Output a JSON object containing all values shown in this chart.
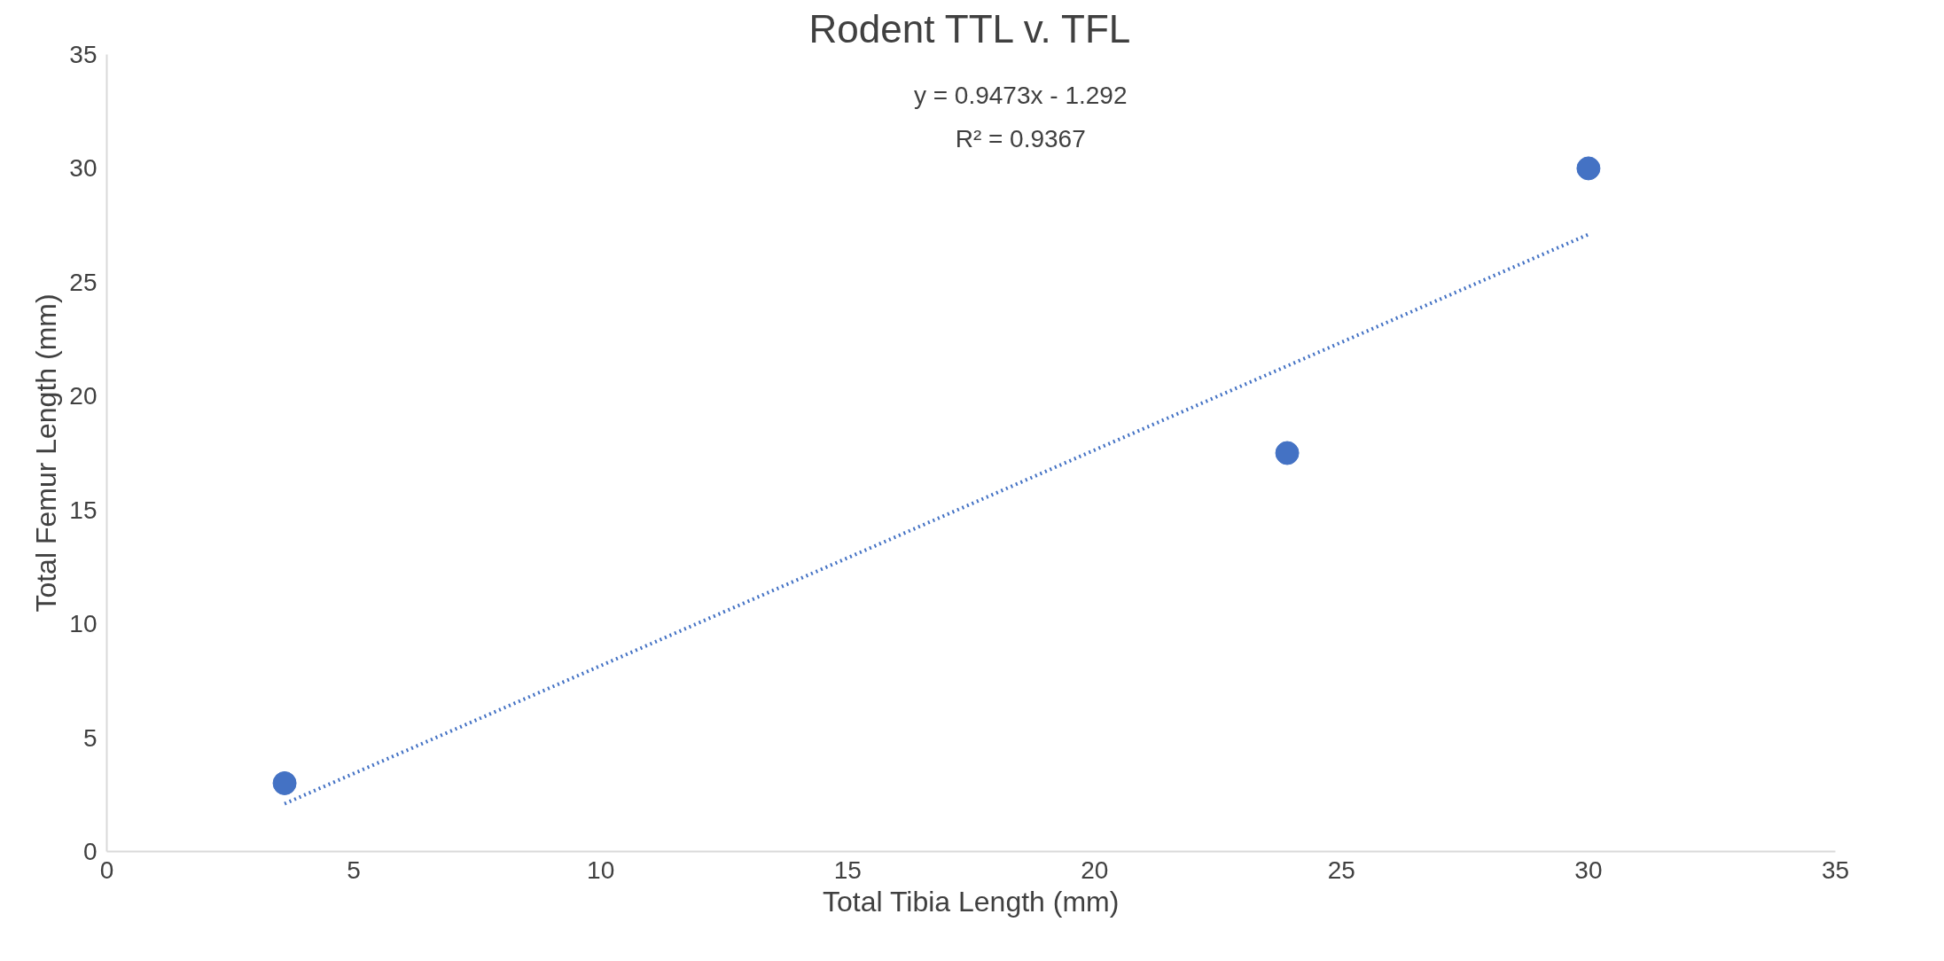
{
  "chart_data": {
    "type": "scatter",
    "title": "Rodent TTL v. TFL",
    "xlabel": "Total Tibia Length (mm)",
    "ylabel": "Total Femur Length (mm)",
    "xlim": [
      0,
      35
    ],
    "xticks": [
      0,
      5,
      10,
      15,
      20,
      25,
      30,
      35
    ],
    "ylim": [
      0,
      35
    ],
    "yticks": [
      0,
      5,
      10,
      15,
      20,
      25,
      30,
      35
    ],
    "grid": false,
    "series": [
      {
        "color": "#4472c4",
        "marker": "circle",
        "x": [
          3.6,
          23.9,
          30.0
        ],
        "values": [
          3.0,
          17.5,
          30.0
        ]
      },
      {
        "type": "line",
        "color": "#4472c4",
        "line_style": "dotted",
        "x": [
          3.6,
          30.0
        ],
        "values": [
          2.1,
          27.1
        ]
      }
    ],
    "annotations": [
      "y = 0.9473x - 1.292",
      "R² = 0.9367"
    ]
  }
}
